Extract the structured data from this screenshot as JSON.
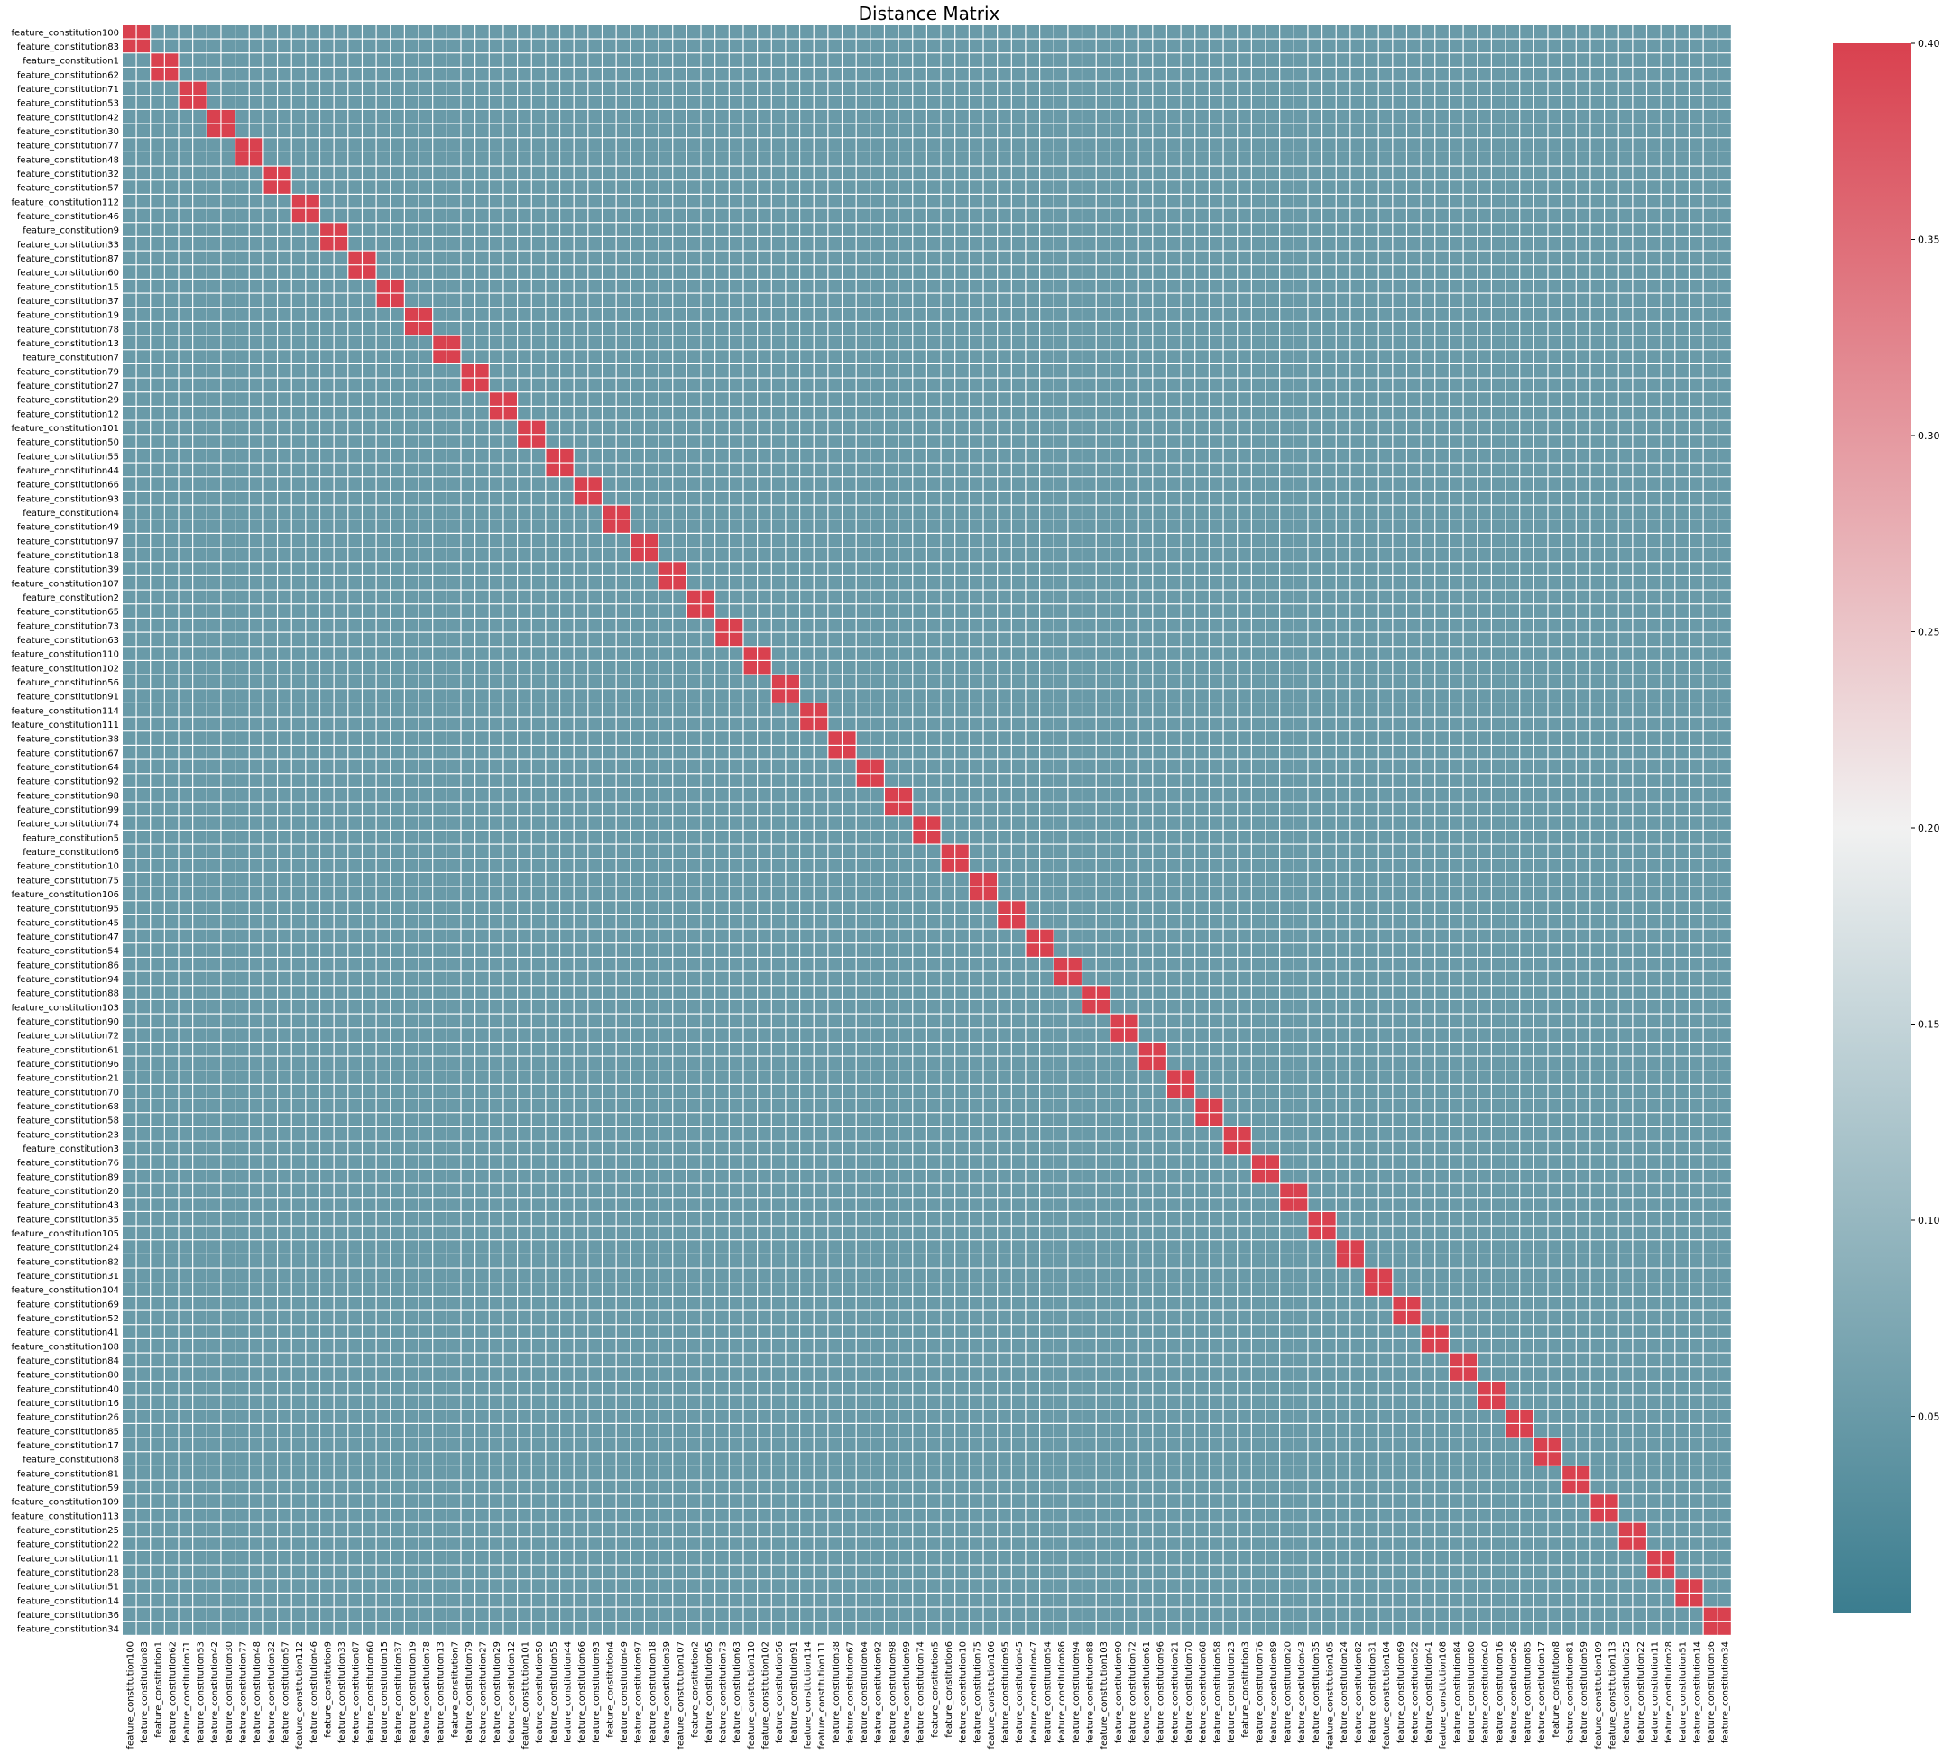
{
  "chart_data": {
    "type": "heatmap",
    "title": "Distance Matrix",
    "xlabel": "",
    "ylabel": "",
    "features": [
      "feature_constitution100",
      "feature_constitution83",
      "feature_constitution1",
      "feature_constitution62",
      "feature_constitution71",
      "feature_constitution53",
      "feature_constitution42",
      "feature_constitution30",
      "feature_constitution77",
      "feature_constitution48",
      "feature_constitution32",
      "feature_constitution57",
      "feature_constitution112",
      "feature_constitution46",
      "feature_constitution9",
      "feature_constitution33",
      "feature_constitution87",
      "feature_constitution60",
      "feature_constitution15",
      "feature_constitution37",
      "feature_constitution19",
      "feature_constitution78",
      "feature_constitution13",
      "feature_constitution7",
      "feature_constitution79",
      "feature_constitution27",
      "feature_constitution29",
      "feature_constitution12",
      "feature_constitution101",
      "feature_constitution50",
      "feature_constitution55",
      "feature_constitution44",
      "feature_constitution66",
      "feature_constitution93",
      "feature_constitution4",
      "feature_constitution49",
      "feature_constitution97",
      "feature_constitution18",
      "feature_constitution39",
      "feature_constitution107",
      "feature_constitution2",
      "feature_constitution65",
      "feature_constitution73",
      "feature_constitution63",
      "feature_constitution110",
      "feature_constitution102",
      "feature_constitution56",
      "feature_constitution91",
      "feature_constitution114",
      "feature_constitution111",
      "feature_constitution38",
      "feature_constitution67",
      "feature_constitution64",
      "feature_constitution92",
      "feature_constitution98",
      "feature_constitution99",
      "feature_constitution74",
      "feature_constitution5",
      "feature_constitution6",
      "feature_constitution10",
      "feature_constitution75",
      "feature_constitution106",
      "feature_constitution95",
      "feature_constitution45",
      "feature_constitution47",
      "feature_constitution54",
      "feature_constitution86",
      "feature_constitution94",
      "feature_constitution88",
      "feature_constitution103",
      "feature_constitution90",
      "feature_constitution72",
      "feature_constitution61",
      "feature_constitution96",
      "feature_constitution21",
      "feature_constitution70",
      "feature_constitution68",
      "feature_constitution58",
      "feature_constitution23",
      "feature_constitution3",
      "feature_constitution76",
      "feature_constitution89",
      "feature_constitution20",
      "feature_constitution43",
      "feature_constitution35",
      "feature_constitution105",
      "feature_constitution24",
      "feature_constitution82",
      "feature_constitution31",
      "feature_constitution104",
      "feature_constitution69",
      "feature_constitution52",
      "feature_constitution41",
      "feature_constitution108",
      "feature_constitution84",
      "feature_constitution80",
      "feature_constitution40",
      "feature_constitution16",
      "feature_constitution26",
      "feature_constitution85",
      "feature_constitution17",
      "feature_constitution8",
      "feature_constitution81",
      "feature_constitution59",
      "feature_constitution109",
      "feature_constitution113",
      "feature_constitution25",
      "feature_constitution22",
      "feature_constitution11",
      "feature_constitution28",
      "feature_constitution51",
      "feature_constitution14",
      "feature_constitution36",
      "feature_constitution34"
    ],
    "clusters": [
      2,
      2,
      2,
      2,
      2,
      2,
      2,
      2,
      2,
      2,
      2,
      2,
      2,
      2,
      2,
      2,
      2,
      2,
      2,
      2,
      2,
      2,
      2,
      2,
      2,
      2,
      2,
      2,
      2,
      2,
      2,
      2,
      2,
      2,
      2,
      2,
      2,
      2,
      2,
      2,
      2,
      2,
      2,
      2,
      2,
      2,
      2,
      2,
      2,
      2,
      2,
      2,
      2,
      2,
      2,
      2,
      2,
      2,
      2,
      2,
      2,
      2,
      2,
      2,
      2,
      2
    ],
    "diagonal_value": 0.4,
    "off_block_value": 0.05,
    "vmin": 0.0,
    "vmax": 0.4,
    "colormap": {
      "low": "#3b7d8f",
      "mid": "#f1f1f1",
      "high": "#d9414f"
    },
    "colorbar": {
      "ticks": [
        "0.05",
        "0.10",
        "0.15",
        "0.20",
        "0.25",
        "0.30",
        "0.35",
        "0.40"
      ],
      "tick_values": [
        0.05,
        0.1,
        0.15,
        0.2,
        0.25,
        0.3,
        0.35,
        0.4
      ]
    },
    "grid": false,
    "legend": "right"
  }
}
